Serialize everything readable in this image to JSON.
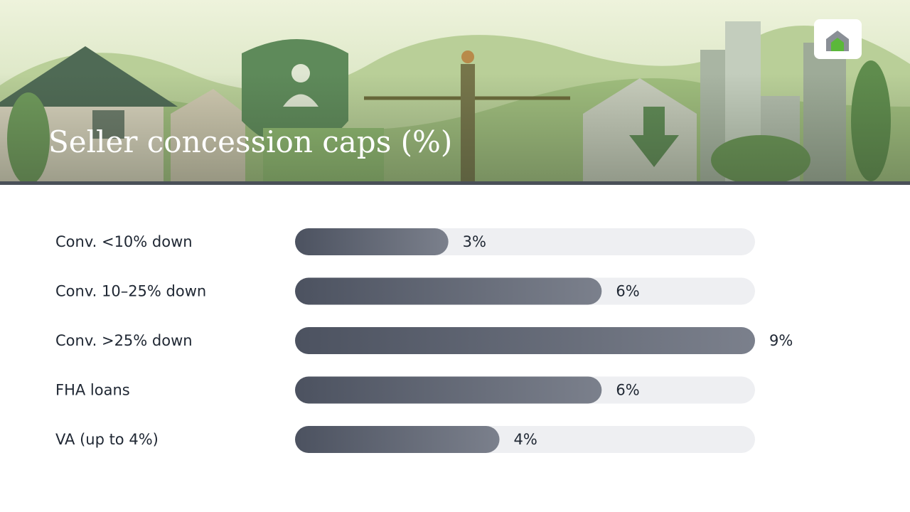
{
  "chart_data": {
    "type": "hbar",
    "title": "Seller concession caps (%)",
    "categories": [
      "Conv. <10% down",
      "Conv. 10–25% down",
      "Conv. >25% down",
      "FHA loans",
      "VA (up to 4%)"
    ],
    "values": [
      3,
      6,
      9,
      6,
      4
    ],
    "value_labels": [
      "3%",
      "6%",
      "9%",
      "6%",
      "4%"
    ],
    "xlim": [
      0,
      9
    ]
  }
}
